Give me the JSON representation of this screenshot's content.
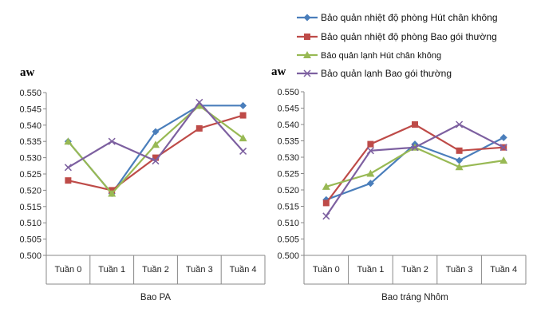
{
  "legend": [
    {
      "label": "Bảo quản nhiệt độ phòng Hút chân không",
      "color": "#4a7ebb",
      "marker": "diamond"
    },
    {
      "label": "Bảo quản nhiệt độ phòng Bao gói thường",
      "color": "#be4b48",
      "marker": "square"
    },
    {
      "label": "Bảo quản lạnh Hút chân không",
      "color": "#98b954",
      "marker": "triangle"
    },
    {
      "label": "Bảo quản lạnh Bao gói thường",
      "color": "#7d60a0",
      "marker": "x"
    }
  ],
  "chart_data": [
    {
      "type": "line",
      "ylabel": "aw",
      "xlabel": "Bao  PA",
      "categories": [
        "Tuần 0",
        "Tuần 1",
        "Tuần 2",
        "Tuần 3",
        "Tuần 4"
      ],
      "ylim": [
        0.5,
        0.55
      ],
      "yticks": [
        "0.500",
        "0.505",
        "0.510",
        "0.515",
        "0.520",
        "0.525",
        "0.530",
        "0.535",
        "0.540",
        "0.545",
        "0.550"
      ],
      "grid": false,
      "series": [
        {
          "name": "Bảo quản nhiệt độ phòng Hút chân không",
          "values": [
            0.535,
            0.519,
            0.538,
            0.546,
            0.546
          ]
        },
        {
          "name": "Bảo quản nhiệt độ phòng Bao gói thường",
          "values": [
            0.523,
            0.52,
            0.53,
            0.539,
            0.543
          ]
        },
        {
          "name": "Bảo quản lạnh Hút chân không",
          "values": [
            0.535,
            0.519,
            0.534,
            0.546,
            0.536
          ]
        },
        {
          "name": "Bảo quản lạnh Bao gói thường",
          "values": [
            0.527,
            0.535,
            0.529,
            0.547,
            0.532
          ]
        }
      ]
    },
    {
      "type": "line",
      "ylabel": "aw",
      "xlabel": "Bao  tráng Nhôm",
      "categories": [
        "Tuần 0",
        "Tuần 1",
        "Tuần 2",
        "Tuần 3",
        "Tuần 4"
      ],
      "ylim": [
        0.5,
        0.55
      ],
      "yticks": [
        "0.500",
        "0.505",
        "0.510",
        "0.515",
        "0.520",
        "0.525",
        "0.530",
        "0.535",
        "0.540",
        "0.545",
        "0.550"
      ],
      "grid": false,
      "series": [
        {
          "name": "Bảo quản nhiệt độ phòng Hút chân không",
          "values": [
            0.517,
            0.522,
            0.534,
            0.529,
            0.536
          ]
        },
        {
          "name": "Bảo quản nhiệt độ phòng Bao gói thường",
          "values": [
            0.516,
            0.534,
            0.54,
            0.532,
            0.533
          ]
        },
        {
          "name": "Bảo quản lạnh Hút chân không",
          "values": [
            0.521,
            0.525,
            0.533,
            0.527,
            0.529
          ]
        },
        {
          "name": "Bảo quản lạnh Bao gói thường",
          "values": [
            0.512,
            0.532,
            0.533,
            0.54,
            0.533
          ]
        }
      ]
    }
  ]
}
